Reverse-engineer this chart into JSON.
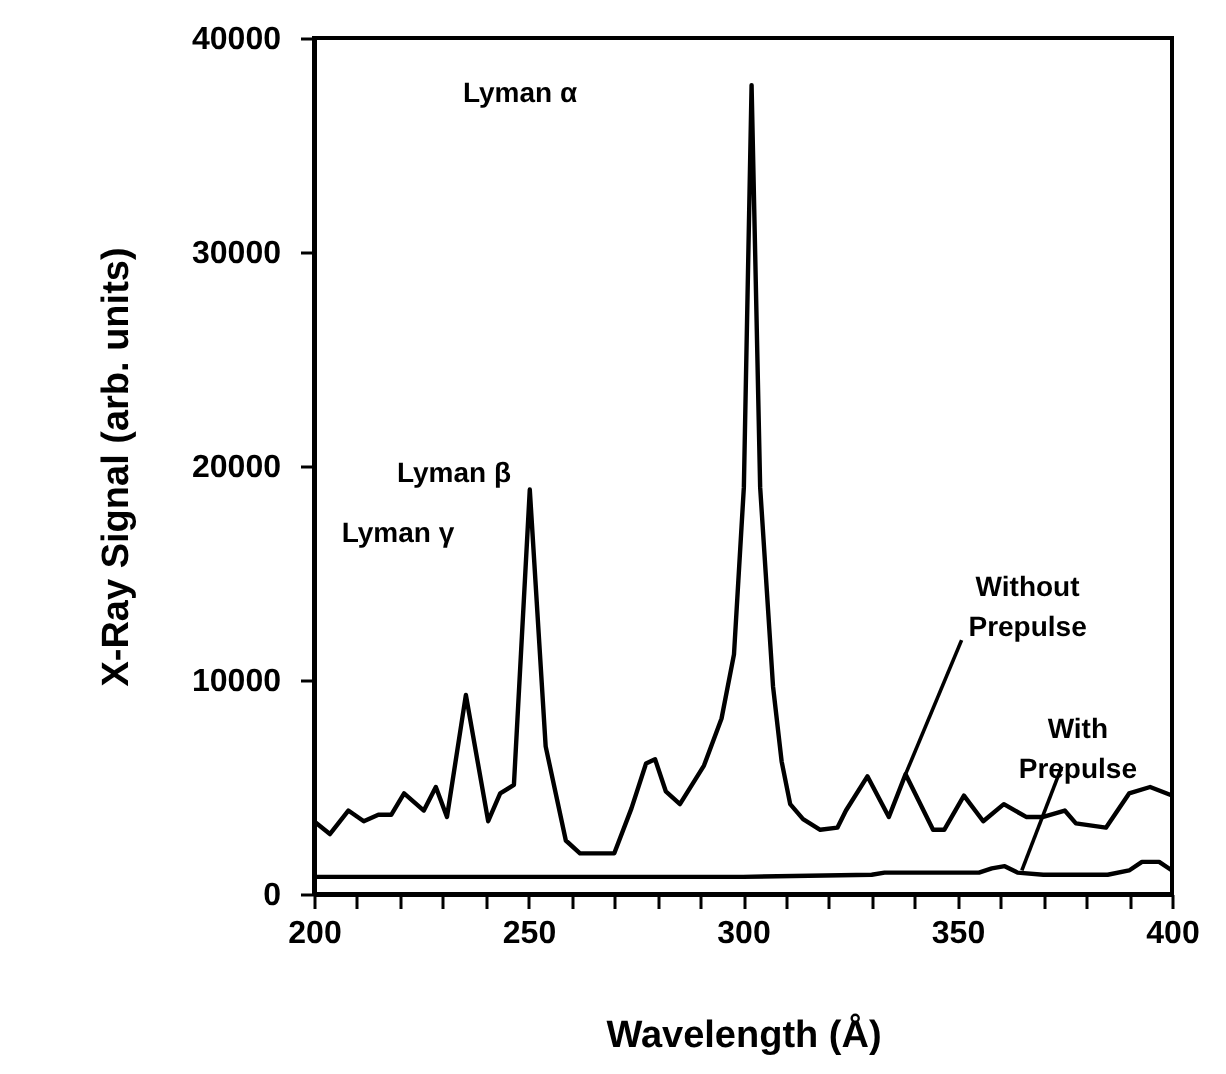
{
  "chart_data": {
    "type": "line",
    "xlabel": "Wavelength (Å)",
    "ylabel": "X-Ray Signal (arb. units)",
    "xlim": [
      200,
      400
    ],
    "ylim": [
      0,
      40000
    ],
    "xticks": [
      200,
      {
        "value": 210,
        "label": null
      },
      {
        "value": 220,
        "label": null
      },
      {
        "value": 230,
        "label": null
      },
      {
        "value": 240,
        "label": null
      },
      250,
      {
        "value": 260,
        "label": null
      },
      {
        "value": 270,
        "label": null
      },
      {
        "value": 280,
        "label": null
      },
      {
        "value": 290,
        "label": null
      },
      300,
      {
        "value": 310,
        "label": null
      },
      {
        "value": 320,
        "label": null
      },
      {
        "value": 330,
        "label": null
      },
      {
        "value": 340,
        "label": null
      },
      350,
      {
        "value": 360,
        "label": null
      },
      {
        "value": 370,
        "label": null
      },
      {
        "value": 380,
        "label": null
      },
      {
        "value": 390,
        "label": null
      },
      400
    ],
    "yticks": [
      0,
      10000,
      20000,
      30000,
      40000
    ],
    "grid": false,
    "series": [
      {
        "color": "#000000",
        "x": [
          200,
          203.7,
          208,
          211.6,
          215,
          218,
          221,
          225.6,
          228.4,
          231,
          235.4,
          240.6,
          243.4,
          246.6,
          250.3,
          254,
          258.7,
          262,
          265.7,
          270,
          274,
          277.4,
          279.5,
          282,
          285.3,
          290.9,
          295,
          297.9,
          300.2,
          302,
          304,
          307,
          309,
          311,
          314,
          318,
          322,
          324,
          329,
          334,
          337.9,
          344.3,
          346.9,
          351.5,
          356,
          360.8,
          366,
          370,
          375,
          377.6,
          384.6,
          390,
          394.9,
          400
        ],
        "values": [
          3400,
          2800,
          3900,
          3400,
          3700,
          3700,
          4700,
          3900,
          5000,
          3600,
          9300,
          3400,
          4700,
          5100,
          18900,
          6900,
          2500,
          1900,
          1900,
          1900,
          4000,
          6100,
          6300,
          4800,
          4200,
          6000,
          8200,
          11200,
          19000,
          37800,
          19000,
          9700,
          6200,
          4200,
          3500,
          3000,
          3100,
          3900,
          5500,
          3600,
          5600,
          3000,
          3000,
          4600,
          3400,
          4200,
          3600,
          3600,
          3900,
          3300,
          3100,
          4700,
          5000,
          4600
        ]
      },
      {
        "color": "#000000",
        "x": [
          200,
          270,
          300,
          330,
          333,
          345,
          355,
          358,
          361,
          364,
          370,
          385,
          390,
          393,
          397,
          400
        ],
        "values": [
          800,
          800,
          800,
          900,
          1000,
          1000,
          1000,
          1200,
          1300,
          1000,
          900,
          900,
          1100,
          1500,
          1500,
          1100
        ]
      }
    ],
    "annotations": [
      "Lyman α",
      "Lyman β",
      "Lyman γ",
      {
        "text": "Without Prepulse",
        "x": 337.9,
        "y": 5600
      },
      {
        "text": "With Prepulse",
        "x": 365,
        "y": 1100
      }
    ]
  }
}
